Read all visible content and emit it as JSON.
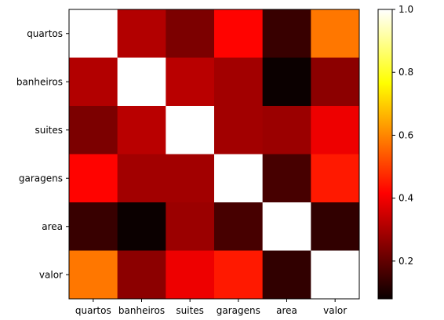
{
  "chart_data": {
    "type": "heatmap",
    "title": "",
    "xlabel": "",
    "ylabel": "",
    "x_categories": [
      "quartos",
      "banheiros",
      "suites",
      "garagens",
      "area",
      "valor"
    ],
    "y_categories": [
      "quartos",
      "banheiros",
      "suites",
      "garagens",
      "area",
      "valor"
    ],
    "values": [
      [
        1.0,
        0.3,
        0.23,
        0.42,
        0.14,
        0.58
      ],
      [
        0.3,
        1.0,
        0.31,
        0.28,
        0.08,
        0.25
      ],
      [
        0.23,
        0.31,
        1.0,
        0.28,
        0.27,
        0.38
      ],
      [
        0.42,
        0.28,
        0.28,
        1.0,
        0.16,
        0.45
      ],
      [
        0.14,
        0.08,
        0.27,
        0.16,
        1.0,
        0.13
      ],
      [
        0.58,
        0.25,
        0.38,
        0.45,
        0.13,
        1.0
      ]
    ],
    "colormap": "hot",
    "colorbar": {
      "min": 0.08,
      "max": 1.0,
      "ticks": [
        0.2,
        0.4,
        0.6,
        0.8,
        1.0
      ],
      "tick_labels": [
        "0.2",
        "0.4",
        "0.6",
        "0.8",
        "1.0"
      ]
    },
    "grid": false
  }
}
